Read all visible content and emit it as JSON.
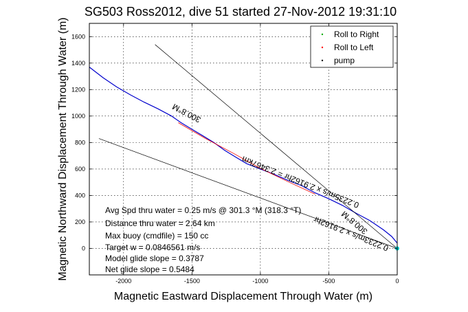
{
  "chart_data": {
    "type": "line",
    "title": "SG503 Ross2012, dive 51 started 27-Nov-2012 19:31:10",
    "xlabel": "Magnetic Eastward Displacement Through Water (m)",
    "ylabel": "Magnetic Northward Displacement Through Water (m)",
    "xlim": [
      -2250,
      0
    ],
    "ylim": [
      -200,
      1700
    ],
    "xticks": [
      -2000,
      -1500,
      -1000,
      -500,
      0
    ],
    "yticks": [
      0,
      200,
      400,
      600,
      800,
      1000,
      1200,
      1400,
      1600
    ],
    "grid": true,
    "legend": {
      "placement": "top-right",
      "entries": [
        {
          "label": "Roll to Right",
          "color": "#00aa00",
          "marker": "."
        },
        {
          "label": "Roll to Left",
          "color": "#ff0000",
          "marker": "."
        },
        {
          "label": "pump",
          "color": "#000000",
          "marker": "."
        }
      ]
    },
    "series": [
      {
        "color": "#0000cc",
        "x": [
          -2250,
          -2150,
          -2050,
          -1950,
          -1850,
          -1750,
          -1650,
          -1580,
          -1500,
          -1420,
          -1340,
          -1260,
          -1180,
          -1100,
          -1000,
          -900,
          -800,
          -700,
          -600,
          -500,
          -400,
          -300,
          -200,
          -100,
          -40,
          0
        ],
        "y": [
          1370,
          1290,
          1220,
          1160,
          1105,
          1055,
          1000,
          950,
          900,
          850,
          800,
          740,
          690,
          640,
          600,
          560,
          515,
          475,
          420,
          375,
          325,
          265,
          210,
          140,
          90,
          40
        ]
      },
      {
        "color": "#ff0000",
        "x": [
          -1600,
          -1400,
          -1200,
          -1000,
          -800,
          -600
        ],
        "y": [
          950,
          830,
          720,
          605,
          505,
          410
        ]
      },
      {
        "color": "#000000",
        "x": [
          -1770,
          0
        ],
        "y": [
          1540,
          0
        ]
      },
      {
        "color": "#000000",
        "x": [
          -2180,
          0
        ],
        "y": [
          830,
          0
        ]
      }
    ],
    "rotated_labels": [
      {
        "text": "300.8°M",
        "x": -1530,
        "y": 1040,
        "angle": 28
      },
      {
        "text": "0.2235m/s x 2.9162hr = 2.3467km",
        "x": -700,
        "y": 520,
        "angle": 22
      },
      {
        "text": "300.8°M",
        "x": -300,
        "y": 210,
        "angle": 40
      },
      {
        "text": "0.2233m/s x 2.9162hr",
        "x": -330,
        "y": 130,
        "angle": 22
      }
    ],
    "annotations": [
      "Avg Spd thru water =  0.25 m/s @ 301.3 °M (318.3 °T)",
      "Distance thru water =  2.64 km",
      "Max buoy (cmdfile) = 150 cc",
      "Target w = 0.0846561 m/s",
      "Model glide slope = 0.3787",
      "Net glide slope = 0.5484"
    ]
  }
}
